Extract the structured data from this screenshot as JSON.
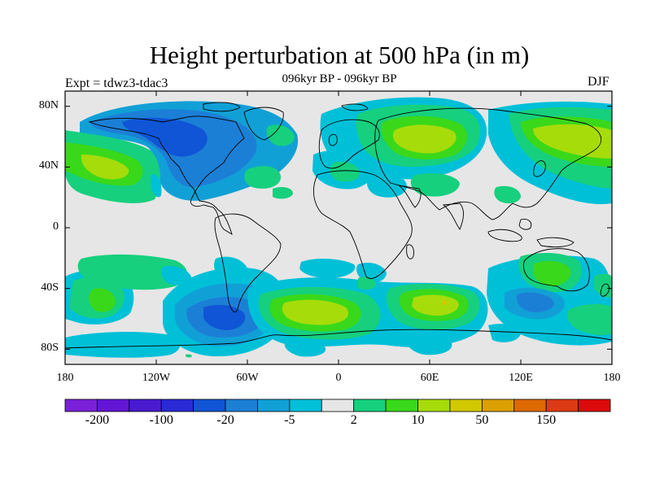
{
  "title": "Height perturbation at 500 hPa (in m)",
  "subtitle": "096kyr BP - 096kyr BP",
  "experiment": "Expt = tdwz3-tdac3",
  "season": "DJF",
  "map": {
    "background_color": "#e6e6e6",
    "lat_labels": [
      "80N",
      "40N",
      "0",
      "40S",
      "80S"
    ],
    "lon_labels": [
      "180",
      "120W",
      "60W",
      "0",
      "60E",
      "120E",
      "180"
    ]
  },
  "colorbar": {
    "colors": [
      "#7a20d8",
      "#6215d4",
      "#4a1ad0",
      "#2a2ad6",
      "#0f55d6",
      "#1c7fd6",
      "#11a0d6",
      "#00c0d8",
      "#e6e6e6",
      "#16d07e",
      "#3ad81a",
      "#a6dc0a",
      "#d2c800",
      "#dca000",
      "#dc6a00",
      "#dc3a14",
      "#dc0a0a"
    ],
    "labels": [
      "-200",
      "-100",
      "-20",
      "-5",
      "2",
      "10",
      "50",
      "150"
    ]
  },
  "chart_data": {
    "type": "heatmap",
    "title": "Height perturbation at 500 hPa (in m)",
    "units": "m",
    "projection": "cylindrical equidistant",
    "lon_range": [
      -180,
      180
    ],
    "lat_range": [
      -90,
      90
    ],
    "contour_levels": [
      -200,
      -100,
      -20,
      -5,
      2,
      10,
      50,
      150
    ],
    "features": [
      {
        "region": "North America / North Atlantic",
        "lon": -75,
        "lat": 55,
        "value_range": [
          -20,
          -5
        ]
      },
      {
        "region": "Central Siberia",
        "lon": 75,
        "lat": 60,
        "value_range": [
          10,
          50
        ]
      },
      {
        "region": "North-west Pacific / Kamchatka",
        "lon": 150,
        "lat": 57,
        "value_range": [
          10,
          50
        ]
      },
      {
        "region": "North-east Pacific",
        "lon": -148,
        "lat": 42,
        "value_range": [
          10,
          50
        ]
      },
      {
        "region": "South Atlantic",
        "lon": -20,
        "lat": -55,
        "value_range": [
          10,
          50
        ]
      },
      {
        "region": "Southern Indian Ocean",
        "lon": 65,
        "lat": -52,
        "value_range": [
          10,
          50
        ]
      },
      {
        "region": "South Pacific (Drake Passage)",
        "lon": -70,
        "lat": -58,
        "value_range": [
          -20,
          -5
        ]
      },
      {
        "region": "Australia",
        "lon": 140,
        "lat": -28,
        "value_range": [
          2,
          10
        ]
      },
      {
        "region": "South of Australia",
        "lon": 130,
        "lat": -50,
        "value_range": [
          -20,
          -5
        ]
      },
      {
        "region": "Mediterranean / Black Sea",
        "lon": 25,
        "lat": 40,
        "value_range": [
          -5,
          2
        ]
      }
    ]
  }
}
